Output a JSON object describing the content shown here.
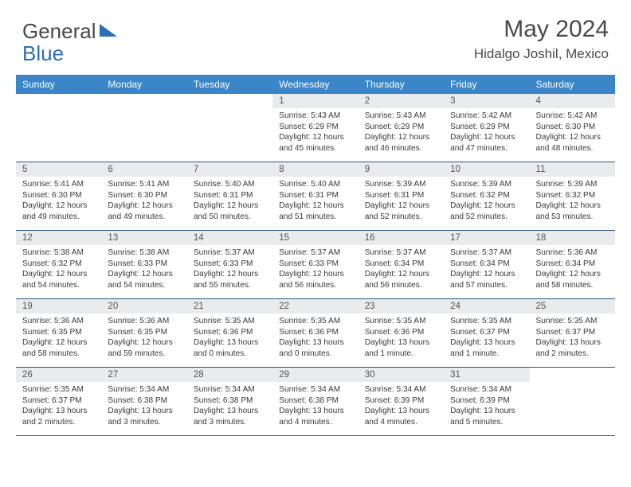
{
  "logo": {
    "text_gray": "General",
    "text_blue": "Blue"
  },
  "title": "May 2024",
  "location": "Hidalgo Joshil, Mexico",
  "colors": {
    "header_bg": "#3a86c8",
    "header_text": "#ffffff",
    "daynum_bg": "#e9ebec",
    "border": "#2a5a8a",
    "logo_blue": "#2a6fb5",
    "text": "#3a3a3a"
  },
  "weekdays": [
    "Sunday",
    "Monday",
    "Tuesday",
    "Wednesday",
    "Thursday",
    "Friday",
    "Saturday"
  ],
  "weeks": [
    [
      null,
      null,
      null,
      {
        "n": "1",
        "sr": "5:43 AM",
        "ss": "6:29 PM",
        "dl": "12 hours and 45 minutes."
      },
      {
        "n": "2",
        "sr": "5:43 AM",
        "ss": "6:29 PM",
        "dl": "12 hours and 46 minutes."
      },
      {
        "n": "3",
        "sr": "5:42 AM",
        "ss": "6:29 PM",
        "dl": "12 hours and 47 minutes."
      },
      {
        "n": "4",
        "sr": "5:42 AM",
        "ss": "6:30 PM",
        "dl": "12 hours and 48 minutes."
      }
    ],
    [
      {
        "n": "5",
        "sr": "5:41 AM",
        "ss": "6:30 PM",
        "dl": "12 hours and 49 minutes."
      },
      {
        "n": "6",
        "sr": "5:41 AM",
        "ss": "6:30 PM",
        "dl": "12 hours and 49 minutes."
      },
      {
        "n": "7",
        "sr": "5:40 AM",
        "ss": "6:31 PM",
        "dl": "12 hours and 50 minutes."
      },
      {
        "n": "8",
        "sr": "5:40 AM",
        "ss": "6:31 PM",
        "dl": "12 hours and 51 minutes."
      },
      {
        "n": "9",
        "sr": "5:39 AM",
        "ss": "6:31 PM",
        "dl": "12 hours and 52 minutes."
      },
      {
        "n": "10",
        "sr": "5:39 AM",
        "ss": "6:32 PM",
        "dl": "12 hours and 52 minutes."
      },
      {
        "n": "11",
        "sr": "5:39 AM",
        "ss": "6:32 PM",
        "dl": "12 hours and 53 minutes."
      }
    ],
    [
      {
        "n": "12",
        "sr": "5:38 AM",
        "ss": "6:32 PM",
        "dl": "12 hours and 54 minutes."
      },
      {
        "n": "13",
        "sr": "5:38 AM",
        "ss": "6:33 PM",
        "dl": "12 hours and 54 minutes."
      },
      {
        "n": "14",
        "sr": "5:37 AM",
        "ss": "6:33 PM",
        "dl": "12 hours and 55 minutes."
      },
      {
        "n": "15",
        "sr": "5:37 AM",
        "ss": "6:33 PM",
        "dl": "12 hours and 56 minutes."
      },
      {
        "n": "16",
        "sr": "5:37 AM",
        "ss": "6:34 PM",
        "dl": "12 hours and 56 minutes."
      },
      {
        "n": "17",
        "sr": "5:37 AM",
        "ss": "6:34 PM",
        "dl": "12 hours and 57 minutes."
      },
      {
        "n": "18",
        "sr": "5:36 AM",
        "ss": "6:34 PM",
        "dl": "12 hours and 58 minutes."
      }
    ],
    [
      {
        "n": "19",
        "sr": "5:36 AM",
        "ss": "6:35 PM",
        "dl": "12 hours and 58 minutes."
      },
      {
        "n": "20",
        "sr": "5:36 AM",
        "ss": "6:35 PM",
        "dl": "12 hours and 59 minutes."
      },
      {
        "n": "21",
        "sr": "5:35 AM",
        "ss": "6:36 PM",
        "dl": "13 hours and 0 minutes."
      },
      {
        "n": "22",
        "sr": "5:35 AM",
        "ss": "6:36 PM",
        "dl": "13 hours and 0 minutes."
      },
      {
        "n": "23",
        "sr": "5:35 AM",
        "ss": "6:36 PM",
        "dl": "13 hours and 1 minute."
      },
      {
        "n": "24",
        "sr": "5:35 AM",
        "ss": "6:37 PM",
        "dl": "13 hours and 1 minute."
      },
      {
        "n": "25",
        "sr": "5:35 AM",
        "ss": "6:37 PM",
        "dl": "13 hours and 2 minutes."
      }
    ],
    [
      {
        "n": "26",
        "sr": "5:35 AM",
        "ss": "6:37 PM",
        "dl": "13 hours and 2 minutes."
      },
      {
        "n": "27",
        "sr": "5:34 AM",
        "ss": "6:38 PM",
        "dl": "13 hours and 3 minutes."
      },
      {
        "n": "28",
        "sr": "5:34 AM",
        "ss": "6:38 PM",
        "dl": "13 hours and 3 minutes."
      },
      {
        "n": "29",
        "sr": "5:34 AM",
        "ss": "6:38 PM",
        "dl": "13 hours and 4 minutes."
      },
      {
        "n": "30",
        "sr": "5:34 AM",
        "ss": "6:39 PM",
        "dl": "13 hours and 4 minutes."
      },
      {
        "n": "31",
        "sr": "5:34 AM",
        "ss": "6:39 PM",
        "dl": "13 hours and 5 minutes."
      },
      null
    ]
  ],
  "labels": {
    "sunrise": "Sunrise:",
    "sunset": "Sunset:",
    "daylight": "Daylight:"
  }
}
